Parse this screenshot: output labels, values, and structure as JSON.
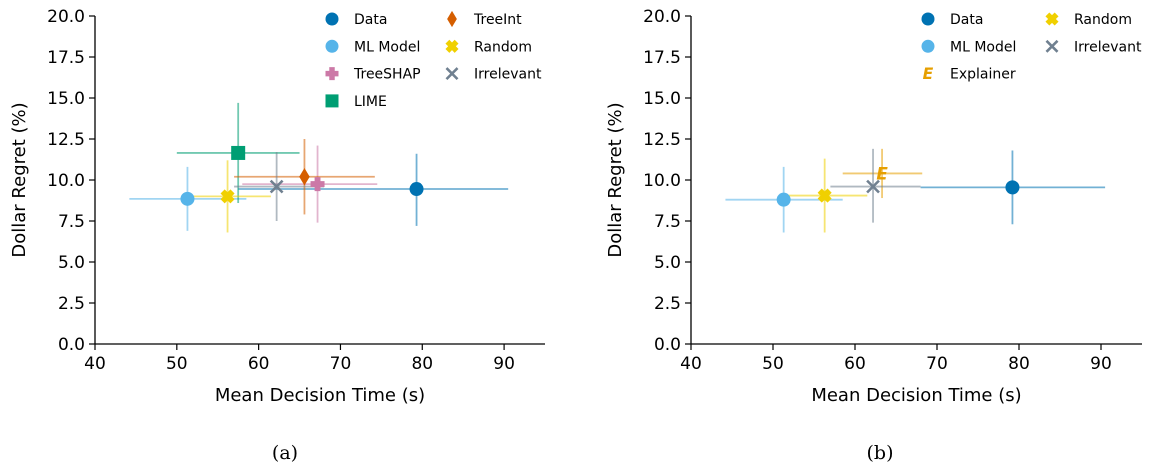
{
  "chart_data": [
    {
      "type": "scatter",
      "caption": "(a)",
      "xlabel": "Mean Decision Time (s)",
      "ylabel": "Dollar Regret (%)",
      "xlim": [
        40,
        95
      ],
      "ylim": [
        0,
        20
      ],
      "xticks": [
        "40",
        "50",
        "60",
        "70",
        "80",
        "90"
      ],
      "yticks": [
        "0.0",
        "2.5",
        "5.0",
        "7.5",
        "10.0",
        "12.5",
        "15.0",
        "17.5",
        "20.0"
      ],
      "grid": false,
      "legend_position": "top-right",
      "legend_columns": 2,
      "series": [
        {
          "name": "Data",
          "marker": "circle",
          "color": "#0072B2",
          "x": 79.3,
          "y": 9.45,
          "x_err": [
            57.5,
            90.5
          ],
          "y_err": [
            7.2,
            11.6
          ]
        },
        {
          "name": "ML Model",
          "marker": "circle",
          "color": "#56B4E9",
          "x": 51.3,
          "y": 8.85,
          "x_err": [
            44.2,
            58.5
          ],
          "y_err": [
            6.9,
            10.8
          ]
        },
        {
          "name": "TreeSHAP",
          "marker": "plus",
          "color": "#CC79A7",
          "x": 67.2,
          "y": 9.75,
          "x_err": [
            58.0,
            74.5
          ],
          "y_err": [
            7.4,
            12.1
          ]
        },
        {
          "name": "LIME",
          "marker": "square",
          "color": "#009E73",
          "x": 57.5,
          "y": 11.65,
          "x_err": [
            50.0,
            65.0
          ],
          "y_err": [
            8.6,
            14.7
          ]
        },
        {
          "name": "TreeInt",
          "marker": "diamond",
          "color": "#D55E00",
          "x": 65.6,
          "y": 10.2,
          "x_err": [
            57.0,
            74.2
          ],
          "y_err": [
            7.9,
            12.5
          ]
        },
        {
          "name": "Random",
          "marker": "x-filled",
          "color": "#F0D000",
          "x": 56.2,
          "y": 9.0,
          "x_err": [
            51.0,
            61.5
          ],
          "y_err": [
            6.8,
            11.2
          ]
        },
        {
          "name": "Irrelevant",
          "marker": "x",
          "color": "#708090",
          "x": 62.2,
          "y": 9.6,
          "x_err": [
            57.0,
            68.0
          ],
          "y_err": [
            7.5,
            11.7
          ]
        }
      ],
      "legend_order": [
        "Data",
        "ML Model",
        "TreeSHAP",
        "LIME",
        "TreeInt",
        "Random",
        "Irrelevant"
      ]
    },
    {
      "type": "scatter",
      "caption": "(b)",
      "xlabel": "Mean Decision Time (s)",
      "ylabel": "Dollar Regret (%)",
      "xlim": [
        40,
        95
      ],
      "ylim": [
        0,
        20
      ],
      "xticks": [
        "40",
        "50",
        "60",
        "70",
        "80",
        "90"
      ],
      "yticks": [
        "0.0",
        "2.5",
        "5.0",
        "7.5",
        "10.0",
        "12.5",
        "15.0",
        "17.5",
        "20.0"
      ],
      "grid": false,
      "legend_position": "top-right",
      "legend_columns": 2,
      "series": [
        {
          "name": "Data",
          "marker": "circle",
          "color": "#0072B2",
          "x": 79.2,
          "y": 9.55,
          "x_err": [
            68.0,
            90.5
          ],
          "y_err": [
            7.3,
            11.8
          ]
        },
        {
          "name": "ML Model",
          "marker": "circle",
          "color": "#56B4E9",
          "x": 51.3,
          "y": 8.8,
          "x_err": [
            44.2,
            58.5
          ],
          "y_err": [
            6.8,
            10.8
          ]
        },
        {
          "name": "Explainer",
          "marker": "letter-E",
          "color": "#E69F00",
          "x": 63.3,
          "y": 10.4,
          "x_err": [
            58.5,
            68.2
          ],
          "y_err": [
            8.9,
            11.9
          ]
        },
        {
          "name": "Random",
          "marker": "x-filled",
          "color": "#F0D000",
          "x": 56.3,
          "y": 9.05,
          "x_err": [
            51.0,
            61.5
          ],
          "y_err": [
            6.8,
            11.3
          ]
        },
        {
          "name": "Irrelevant",
          "marker": "x",
          "color": "#708090",
          "x": 62.2,
          "y": 9.6,
          "x_err": [
            57.0,
            68.0
          ],
          "y_err": [
            7.4,
            11.9
          ]
        }
      ],
      "legend_order": [
        "Data",
        "ML Model",
        "Explainer",
        "Random",
        "Irrelevant"
      ]
    }
  ]
}
